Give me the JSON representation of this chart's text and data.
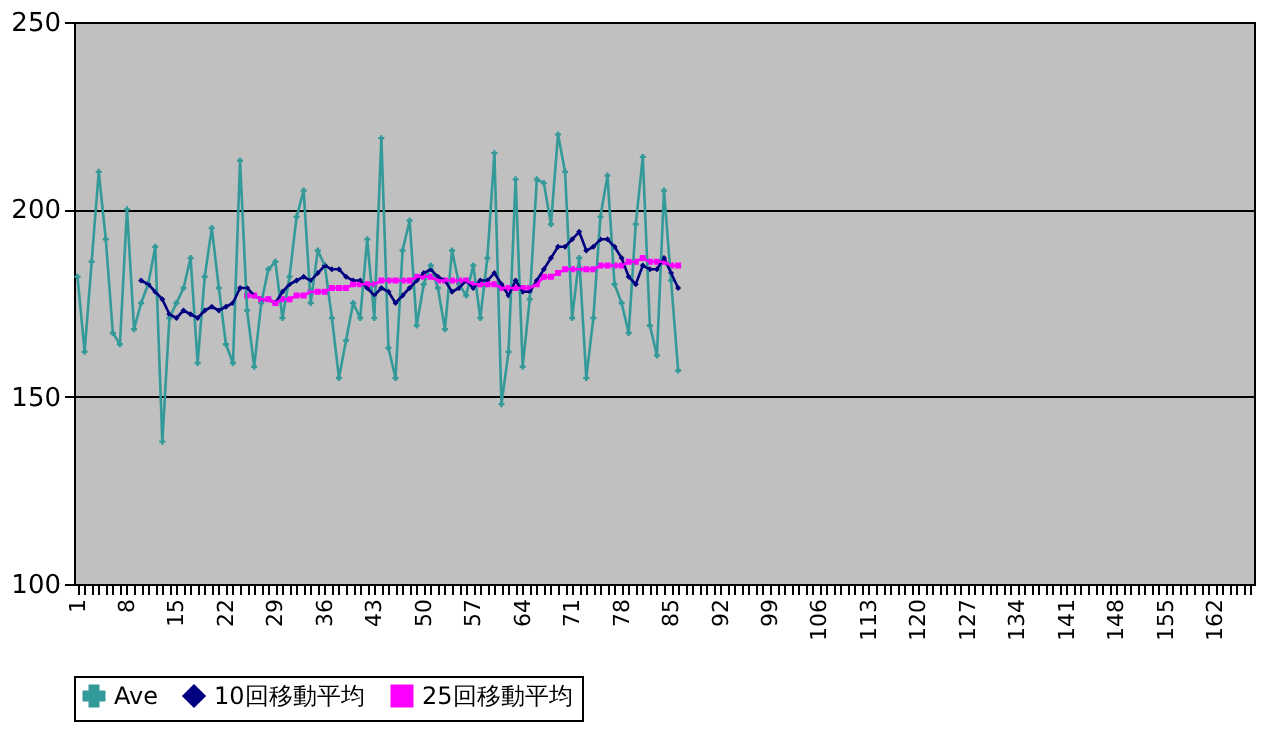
{
  "chart_data": {
    "type": "line",
    "categories": [
      "1",
      null,
      null,
      null,
      null,
      null,
      null,
      "8",
      null,
      null,
      null,
      null,
      null,
      null,
      "15",
      null,
      null,
      null,
      null,
      null,
      null,
      "22",
      null,
      null,
      null,
      null,
      null,
      null,
      "29",
      null,
      null,
      null,
      null,
      null,
      null,
      "36",
      null,
      null,
      null,
      null,
      null,
      null,
      "43",
      null,
      null,
      null,
      null,
      null,
      null,
      "50",
      null,
      null,
      null,
      null,
      null,
      null,
      "57",
      null,
      null,
      null,
      null,
      null,
      null,
      "64",
      null,
      null,
      null,
      null,
      null,
      null,
      "71",
      null,
      null,
      null,
      null,
      null,
      null,
      "78",
      null,
      null,
      null,
      null,
      null,
      null,
      "85",
      null,
      null,
      null,
      null,
      null,
      null,
      "92",
      null,
      null,
      null,
      null,
      null,
      null,
      "99",
      null,
      null,
      null,
      null,
      null,
      null,
      "106",
      null,
      null,
      null,
      null,
      null,
      null,
      "113",
      null,
      null,
      null,
      null,
      null,
      null,
      "120",
      null,
      null,
      null,
      null,
      null,
      null,
      "127",
      null,
      null,
      null,
      null,
      null,
      null,
      "134",
      null,
      null,
      null,
      null,
      null,
      null,
      "141",
      null,
      null,
      null,
      null,
      null,
      null,
      "148",
      null,
      null,
      null,
      null,
      null,
      null,
      "155",
      null,
      null,
      null,
      null,
      null,
      null,
      "162",
      null,
      null,
      null,
      null,
      null
    ],
    "series": [
      {
        "name": "Ave",
        "color": "#339999",
        "marker": "cross",
        "values": [
          182,
          162,
          186,
          210,
          192,
          167,
          164,
          200,
          168,
          175,
          180,
          190,
          138,
          171,
          175,
          179,
          187,
          159,
          182,
          195,
          179,
          164,
          159,
          213,
          173,
          158,
          175,
          184,
          186,
          171,
          182,
          198,
          205,
          175,
          189,
          185,
          171,
          155,
          165,
          175,
          171,
          192,
          171,
          219,
          163,
          155,
          189,
          197,
          169,
          180,
          185,
          179,
          168,
          189,
          180,
          177,
          185,
          171,
          187,
          215,
          148,
          162,
          208,
          158,
          176,
          208,
          207,
          196,
          220,
          210,
          171,
          187,
          155,
          171,
          198,
          209,
          180,
          175,
          167,
          196,
          214,
          169,
          161,
          205,
          181,
          157,
          null,
          null,
          null,
          null,
          null,
          null,
          null,
          null,
          null,
          null,
          null,
          null,
          null,
          null,
          null,
          null,
          null,
          null,
          null,
          null,
          null,
          null,
          null,
          null,
          null,
          null,
          null,
          null,
          null,
          null,
          null,
          null,
          null,
          null,
          null,
          null,
          null,
          null,
          null,
          null,
          null,
          null,
          null,
          null,
          null,
          null,
          null,
          null,
          null,
          null,
          null,
          null,
          null,
          null,
          null,
          null,
          null,
          null,
          null,
          null,
          null,
          null,
          null,
          null,
          null,
          null,
          null,
          null,
          null,
          null,
          null,
          null,
          null,
          null,
          null,
          null,
          null,
          null,
          null,
          null,
          null
        ]
      },
      {
        "name": "10回移動平均",
        "color": "#000080",
        "marker": "diamond",
        "values": [
          null,
          null,
          null,
          null,
          null,
          null,
          null,
          null,
          null,
          181,
          180,
          178,
          176,
          172,
          171,
          173,
          172,
          171,
          173,
          174,
          173,
          174,
          175,
          179,
          179,
          177,
          176,
          176,
          175,
          178,
          180,
          181,
          182,
          181,
          183,
          185,
          184,
          184,
          182,
          181,
          181,
          179,
          177,
          179,
          178,
          175,
          177,
          179,
          181,
          183,
          184,
          182,
          181,
          178,
          179,
          181,
          179,
          181,
          181,
          183,
          180,
          177,
          181,
          178,
          178,
          181,
          184,
          187,
          190,
          190,
          192,
          194,
          189,
          190,
          192,
          192,
          190,
          187,
          182,
          180,
          185,
          184,
          184,
          187,
          183,
          179,
          null,
          null,
          null,
          null,
          null,
          null,
          null,
          null,
          null,
          null,
          null,
          null,
          null,
          null,
          null,
          null,
          null,
          null,
          null,
          null,
          null,
          null,
          null,
          null,
          null,
          null,
          null,
          null,
          null,
          null,
          null,
          null,
          null,
          null,
          null,
          null,
          null,
          null,
          null,
          null,
          null,
          null,
          null,
          null,
          null,
          null,
          null,
          null,
          null,
          null,
          null,
          null,
          null,
          null,
          null,
          null,
          null,
          null,
          null,
          null,
          null,
          null,
          null,
          null,
          null,
          null,
          null,
          null,
          null,
          null,
          null,
          null,
          null,
          null,
          null,
          null,
          null,
          null,
          null,
          null,
          null
        ]
      },
      {
        "name": "25回移動平均",
        "color": "#ff00ff",
        "marker": "square",
        "values": [
          null,
          null,
          null,
          null,
          null,
          null,
          null,
          null,
          null,
          null,
          null,
          null,
          null,
          null,
          null,
          null,
          null,
          null,
          null,
          null,
          null,
          null,
          null,
          null,
          177,
          177,
          176,
          176,
          175,
          176,
          176,
          177,
          177,
          178,
          178,
          178,
          179,
          179,
          179,
          180,
          180,
          180,
          180,
          181,
          181,
          181,
          181,
          181,
          182,
          182,
          182,
          181,
          181,
          181,
          181,
          181,
          180,
          180,
          180,
          180,
          179,
          179,
          179,
          179,
          179,
          180,
          182,
          182,
          183,
          184,
          184,
          184,
          184,
          184,
          185,
          185,
          185,
          185,
          186,
          186,
          187,
          186,
          186,
          186,
          185,
          185,
          null,
          null,
          null,
          null,
          null,
          null,
          null,
          null,
          null,
          null,
          null,
          null,
          null,
          null,
          null,
          null,
          null,
          null,
          null,
          null,
          null,
          null,
          null,
          null,
          null,
          null,
          null,
          null,
          null,
          null,
          null,
          null,
          null,
          null,
          null,
          null,
          null,
          null,
          null,
          null,
          null,
          null,
          null,
          null,
          null,
          null,
          null,
          null,
          null,
          null,
          null,
          null,
          null,
          null,
          null,
          null,
          null,
          null,
          null,
          null,
          null,
          null,
          null,
          null,
          null,
          null,
          null,
          null,
          null,
          null,
          null,
          null,
          null,
          null,
          null,
          null,
          null,
          null,
          null,
          null,
          null
        ]
      }
    ],
    "ylim": [
      100,
      250
    ],
    "yticks": [
      100,
      150,
      200,
      250
    ],
    "grid": "y",
    "legend": "bottom"
  }
}
